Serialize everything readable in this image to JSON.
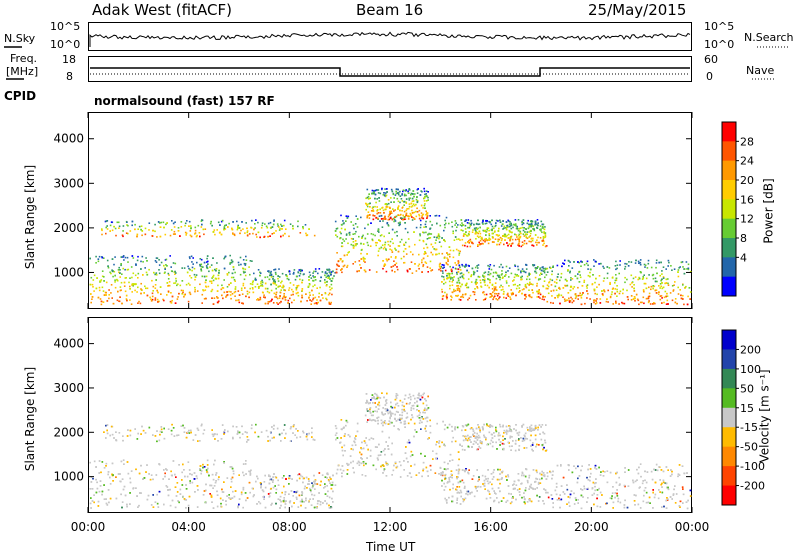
{
  "header": {
    "radar": "Adak West (fitACF)",
    "beam": "Beam 16",
    "date": "25/May/2015"
  },
  "top_panels": {
    "nsky_label": "N.Sky",
    "nsearch_label": "N.Search",
    "nsky_ticks": [
      "10^5",
      "10^0"
    ],
    "nsearch_ticks": [
      "10^5",
      "10^0"
    ],
    "freq_label_1": "Freq.",
    "freq_label_2": "[MHz]",
    "freq_ticks": [
      "18",
      "8"
    ],
    "nave_label": "Nave",
    "nave_ticks": [
      "60",
      "0"
    ],
    "cpid_label": "CPID",
    "cpid_value": "normalsound (fast) 157 RF"
  },
  "chart_data": [
    {
      "type": "heatmap",
      "name": "power",
      "ylabel": "Slant Range [km]",
      "ylim": [
        180,
        4600
      ],
      "yticks": [
        1000,
        2000,
        3000,
        4000
      ],
      "xticks": [
        "00:00",
        "04:00",
        "08:00",
        "12:00",
        "16:00",
        "20:00",
        "00:00"
      ],
      "colorbar": {
        "label": "Power [dB]",
        "ticks": [
          "28",
          "24",
          "20",
          "16",
          "12",
          "8",
          "4"
        ],
        "colors": [
          "#ff0000",
          "#ff5500",
          "#ff9900",
          "#ffcc00",
          "#c8e600",
          "#66cc33",
          "#339966",
          "#2266aa",
          "#0000ff"
        ]
      }
    },
    {
      "type": "heatmap",
      "name": "velocity",
      "ylabel": "Slant Range [km]",
      "ylim": [
        180,
        4600
      ],
      "yticks": [
        1000,
        2000,
        3000,
        4000
      ],
      "xticks": [
        "00:00",
        "04:00",
        "08:00",
        "12:00",
        "16:00",
        "20:00",
        "00:00"
      ],
      "xlabel": "Time UT",
      "colorbar": {
        "label": "Velocity [m s⁻¹]",
        "ticks": [
          "200",
          "100",
          "50",
          "15",
          "-15",
          "-50",
          "-100",
          "-200"
        ],
        "colors": [
          "#0000cc",
          "#2244aa",
          "#338855",
          "#55bb22",
          "#c8c8c8",
          "#ffbb00",
          "#ff8800",
          "#ff4400",
          "#ff0000"
        ]
      }
    }
  ]
}
